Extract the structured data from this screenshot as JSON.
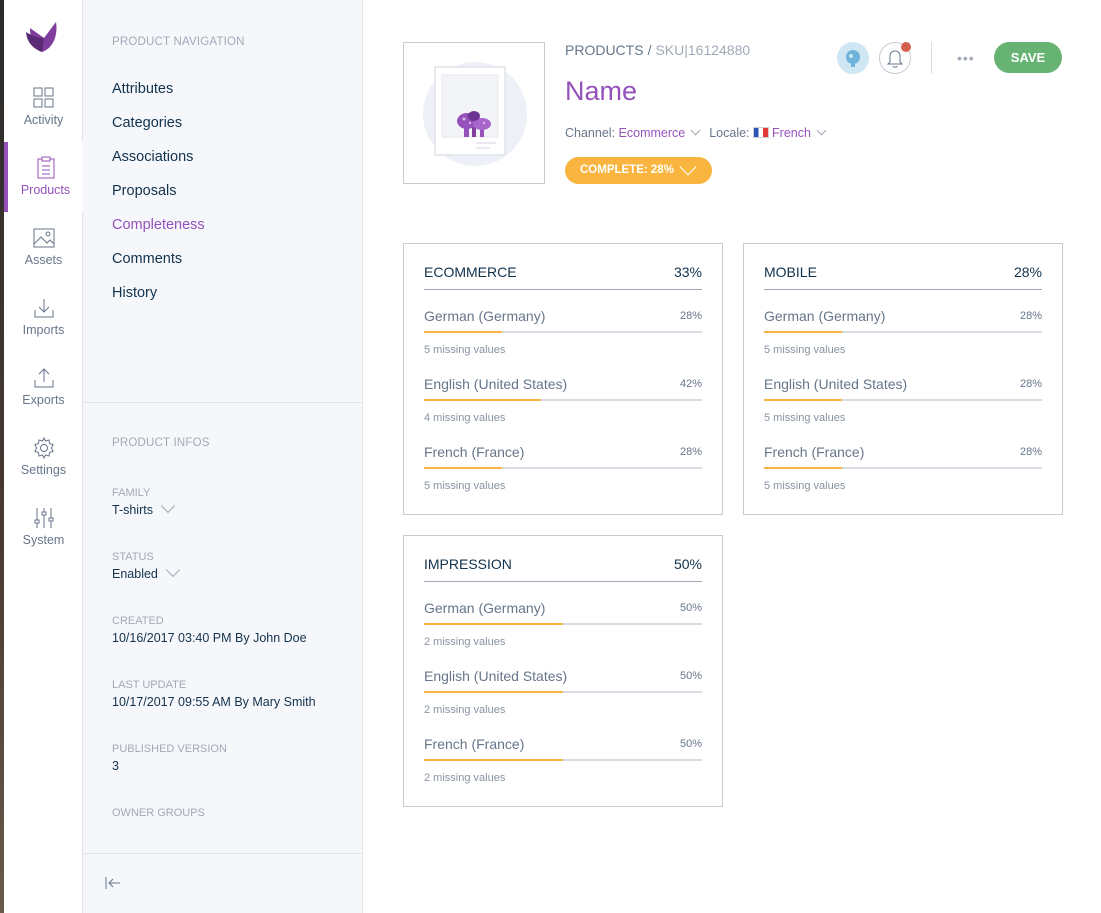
{
  "main_nav": {
    "items": [
      {
        "key": "activity",
        "label": "Activity",
        "icon": "activity-icon"
      },
      {
        "key": "products",
        "label": "Products",
        "icon": "products-icon"
      },
      {
        "key": "assets",
        "label": "Assets",
        "icon": "assets-icon"
      },
      {
        "key": "imports",
        "label": "Imports",
        "icon": "imports-icon"
      },
      {
        "key": "exports",
        "label": "Exports",
        "icon": "exports-icon"
      },
      {
        "key": "settings",
        "label": "Settings",
        "icon": "gear-icon"
      },
      {
        "key": "system",
        "label": "System",
        "icon": "sliders-icon"
      }
    ],
    "active": "Products"
  },
  "product_navigation": {
    "title": "PRODUCT NAVIGATION",
    "links": [
      "Attributes",
      "Categories",
      "Associations",
      "Proposals",
      "Completeness",
      "Comments",
      "History"
    ],
    "active": "Completeness"
  },
  "product_infos": {
    "title": "PRODUCT INFOS",
    "family_label": "FAMILY",
    "family_value": "T-shirts",
    "status_label": "STATUS",
    "status_value": "Enabled",
    "created_label": "CREATED",
    "created_value": "10/16/2017 03:40 PM By John Doe",
    "last_update_label": "LAST UPDATE",
    "last_update_value": "10/17/2017 09:55 AM By Mary Smith",
    "published_label": "PUBLISHED VERSION",
    "published_value": "3",
    "owner_groups_label": "OWNER GROUPS"
  },
  "header": {
    "breadcrumb_root": "PRODUCTS",
    "breadcrumb_sep": "/",
    "breadcrumb_sku": "SKU|16124880",
    "title": "Name",
    "channel_label": "Channel:",
    "channel_value": "Ecommerce",
    "locale_label": "Locale:",
    "locale_value": "French",
    "complete_badge": "COMPLETE: 28%",
    "more_label": "•••",
    "save_label": "SAVE"
  },
  "completeness": [
    {
      "channel": "ECOMMERCE",
      "ratio": "33%",
      "locales": [
        {
          "name": "German (Germany)",
          "ratio": "28%",
          "percent": 28,
          "missing": "5 missing values"
        },
        {
          "name": "English (United States)",
          "ratio": "42%",
          "percent": 42,
          "missing": "4 missing values"
        },
        {
          "name": "French (France)",
          "ratio": "28%",
          "percent": 28,
          "missing": "5 missing values"
        }
      ]
    },
    {
      "channel": "MOBILE",
      "ratio": "28%",
      "locales": [
        {
          "name": "German (Germany)",
          "ratio": "28%",
          "percent": 28,
          "missing": "5 missing values"
        },
        {
          "name": "English (United States)",
          "ratio": "28%",
          "percent": 28,
          "missing": "5 missing values"
        },
        {
          "name": "French (France)",
          "ratio": "28%",
          "percent": 28,
          "missing": "5 missing values"
        }
      ]
    },
    {
      "channel": "IMPRESSION",
      "ratio": "50%",
      "locales": [
        {
          "name": "German (Germany)",
          "ratio": "50%",
          "percent": 50,
          "missing": "2 missing values"
        },
        {
          "name": "English (United States)",
          "ratio": "50%",
          "percent": 50,
          "missing": "2 missing values"
        },
        {
          "name": "French (France)",
          "ratio": "50%",
          "percent": 50,
          "missing": "2 missing values"
        }
      ]
    }
  ],
  "colors": {
    "accent": "#9452ba",
    "progress": "#f9b53f",
    "save": "#67b373",
    "notification": "#d4604f"
  }
}
